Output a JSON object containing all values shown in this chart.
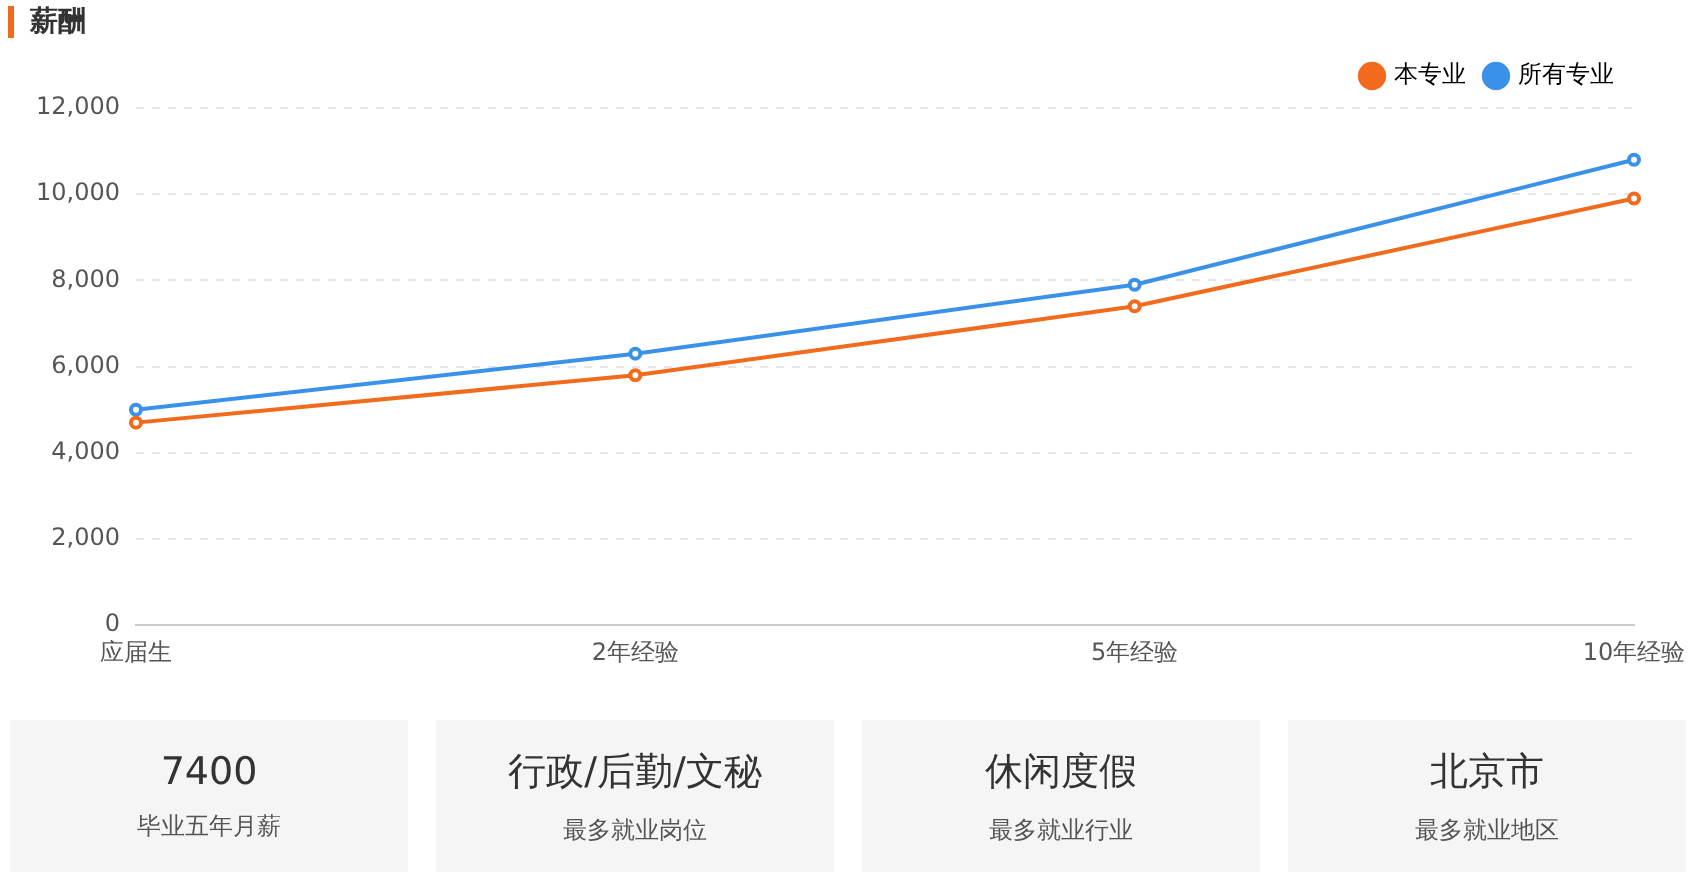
{
  "chart_data": [
    {
      "type": "line",
      "title": "薪酬",
      "categories": [
        "应届生",
        "2年经验",
        "5年经验",
        "10年经验"
      ],
      "series": [
        {
          "name": "本专业",
          "color": "#f26b1d",
          "values": [
            4700,
            5800,
            7400,
            9900
          ]
        },
        {
          "name": "所有专业",
          "color": "#3a91ea",
          "values": [
            5000,
            6300,
            7900,
            10800
          ]
        }
      ],
      "ylim": [
        0,
        12000
      ],
      "yticks": [
        {
          "value": 0,
          "label": "0"
        },
        {
          "value": 2000,
          "label": "2,000"
        },
        {
          "value": 4000,
          "label": "4,000"
        },
        {
          "value": 6000,
          "label": "6,000"
        },
        {
          "value": 8000,
          "label": "8,000"
        },
        {
          "value": 10000,
          "label": "10,000"
        },
        {
          "value": 12000,
          "label": "12,000"
        }
      ],
      "grid": "y",
      "legend": "top right",
      "marker": "circle",
      "line_style": "solid"
    },
    {
      "type": "other",
      "title": "7400",
      "subtitle": "毕业五年月薪"
    },
    {
      "type": "other",
      "title": "行政/后勤/文秘",
      "subtitle": "最多就业岗位"
    },
    {
      "type": "other",
      "title": "休闲度假",
      "subtitle": "最多就业行业"
    },
    {
      "type": "other",
      "title": "北京市",
      "subtitle": "最多就业地区"
    }
  ]
}
